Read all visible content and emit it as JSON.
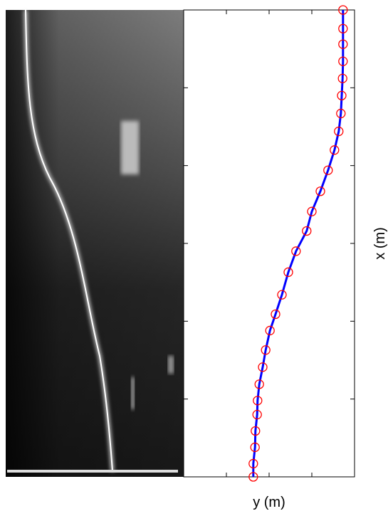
{
  "chart_data": {
    "type": "scatter",
    "xlabel": "x (m)",
    "ylabel": "y (m)",
    "x": [
      0,
      0.17,
      0.38,
      0.59,
      0.8,
      0.98,
      1.19,
      1.41,
      1.63,
      1.88,
      2.09,
      2.34,
      2.63,
      2.9,
      3.16,
      3.41,
      3.67,
      3.94,
      4.2,
      4.44,
      4.67,
      4.9,
      5.12,
      5.34,
      5.56,
      5.76,
      6.0
    ],
    "series": [
      {
        "type": "line",
        "color": "#0000ff",
        "values": [
          1.63,
          1.63,
          1.67,
          1.68,
          1.72,
          1.73,
          1.77,
          1.85,
          1.92,
          2.02,
          2.15,
          2.3,
          2.45,
          2.63,
          2.88,
          3.0,
          3.2,
          3.38,
          3.53,
          3.63,
          3.68,
          3.7,
          3.72,
          3.73,
          3.73,
          3.73,
          3.73
        ]
      },
      {
        "type": "scatter",
        "color": "#ff0000",
        "values": [
          1.63,
          1.63,
          1.67,
          1.68,
          1.72,
          1.73,
          1.77,
          1.85,
          1.92,
          2.02,
          2.15,
          2.3,
          2.45,
          2.63,
          2.88,
          3.0,
          3.2,
          3.38,
          3.53,
          3.63,
          3.68,
          3.7,
          3.72,
          3.73,
          3.73,
          3.73,
          3.73
        ]
      }
    ],
    "xlim": [
      0,
      6
    ],
    "xticks": [
      0,
      1,
      2,
      3,
      4,
      5,
      6
    ],
    "ylim": [
      0,
      4
    ],
    "yticks": [
      0,
      1,
      2,
      3,
      4
    ]
  }
}
